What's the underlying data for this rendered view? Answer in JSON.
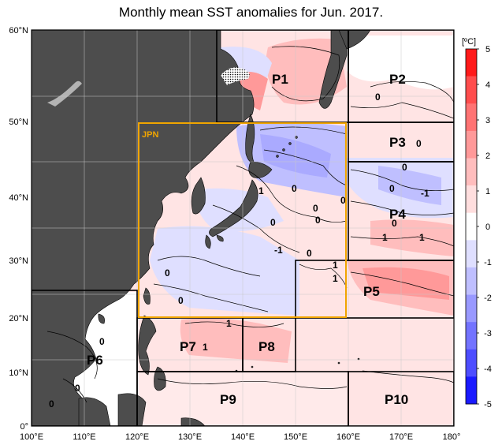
{
  "title": "Monthly mean SST anomalies for Jun. 2017.",
  "axes": {
    "lon_labels": [
      "100°E",
      "110°E",
      "120°E",
      "130°E",
      "140°E",
      "150°E",
      "160°E",
      "170°E",
      "180°"
    ],
    "lat_labels": [
      "60°N",
      "50°N",
      "40°N",
      "30°N",
      "20°N",
      "10°N",
      "0°"
    ]
  },
  "colorbar": {
    "unit": "[ºC]",
    "ticks": [
      "5",
      "4",
      "3",
      "2",
      "1",
      "0",
      "-1",
      "-2",
      "-3",
      "-4",
      "-5"
    ],
    "colors": [
      "#ff1a1a",
      "#ff4d4d",
      "#ff7373",
      "#ff9999",
      "#ffbdbd",
      "#ffdede",
      "#ffffff",
      "#dfdfff",
      "#bfbfff",
      "#9999ff",
      "#7373ff",
      "#4d4dff",
      "#1a1aff"
    ]
  },
  "regions": {
    "jpn": "JPN",
    "p1": "P1",
    "p2": "P2",
    "p3": "P3",
    "p4": "P4",
    "p5": "P5",
    "p6": "P6",
    "p7": "P7",
    "p8": "P8",
    "p9": "P9",
    "p10": "P10"
  },
  "contour_labels": [
    "1",
    "0",
    "0",
    "0",
    "0",
    "-1",
    "0",
    "1",
    "1",
    "0",
    "0",
    "1",
    "0",
    "1",
    "0",
    "0",
    "1",
    "1",
    "0",
    "0",
    "-1",
    "0",
    "0",
    "0",
    "0",
    "0",
    "1",
    "1",
    "0",
    "0",
    "0",
    "0"
  ],
  "colors": {
    "land": "#4d4d4d",
    "ocean_warm": "#ffdede",
    "ocean_warm2": "#ffbdbd",
    "ocean_cool": "#dfdfff",
    "ocean_cool2": "#bfbfff",
    "jpn_box": "#f0a500"
  }
}
